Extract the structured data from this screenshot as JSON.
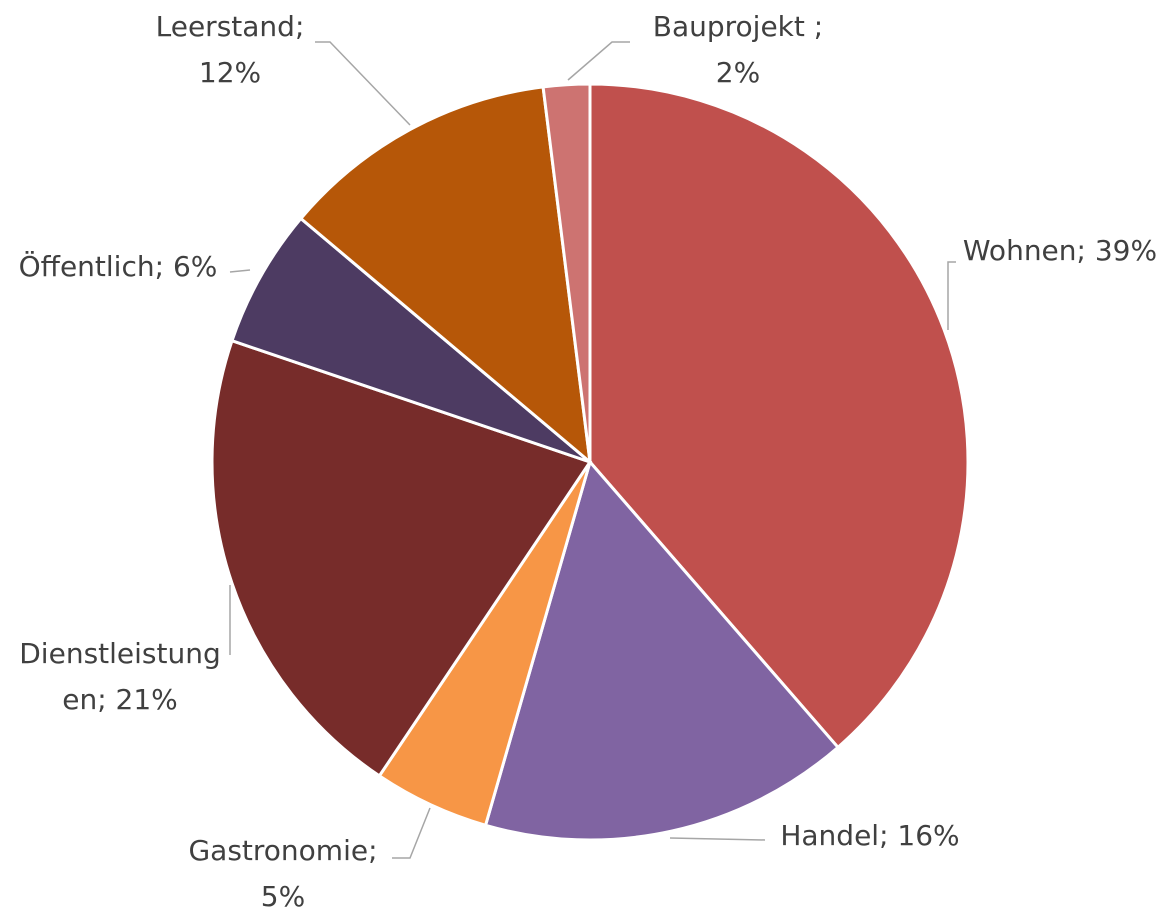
{
  "chart_data": {
    "type": "pie",
    "categories": [
      "Wohnen",
      "Handel",
      "Gastronomie",
      "Dienstleistungen",
      "Öffentlich",
      "Leerstand",
      "Bauprojekt"
    ],
    "values": [
      39,
      16,
      5,
      21,
      6,
      12,
      2
    ],
    "value_labels": [
      [
        "Wohnen; 39%"
      ],
      [
        "Handel; 16%"
      ],
      [
        "Gastronomie;",
        "5%"
      ],
      [
        "Dienstleistung",
        "en; 21%"
      ],
      [
        "Öffentlich; 6%"
      ],
      [
        "Leerstand;",
        "12%"
      ],
      [
        "Bauprojekt ;",
        "2%"
      ]
    ],
    "colors": [
      "#c0504d",
      "#8064a2",
      "#f79646",
      "#772c2a",
      "#4d3b62",
      "#b65708",
      "#cd7371"
    ]
  }
}
